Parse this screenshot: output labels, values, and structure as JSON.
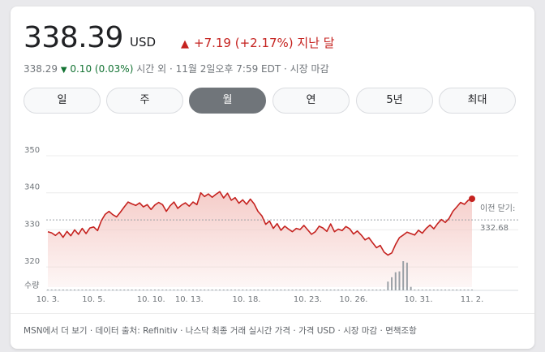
{
  "quote": {
    "price": "338.39",
    "currency": "USD",
    "change_arrow": "▲",
    "change_text": "+7.19 (+2.17%) 지난 달",
    "after_hours_price": "338.29",
    "after_hours_arrow": "▼",
    "after_hours_change": "0.10 (0.03%)",
    "after_hours_label": "시간 외 · 11월 2일오후 7:59 EDT · 시장 마감"
  },
  "tabs": [
    {
      "label": "일",
      "active": false
    },
    {
      "label": "주",
      "active": false
    },
    {
      "label": "월",
      "active": true
    },
    {
      "label": "연",
      "active": false
    },
    {
      "label": "5년",
      "active": false
    },
    {
      "label": "최대",
      "active": false
    }
  ],
  "colors": {
    "line": "#c5221f",
    "fill": "#f4c7c3",
    "volume": "#9aa0a6",
    "grid": "#ececec",
    "accent_up": "#c5221f",
    "accent_down": "#137333"
  },
  "chart_data": {
    "type": "line",
    "ylim": [
      315,
      350
    ],
    "y_ticks": [
      "350",
      "340",
      "330",
      "320"
    ],
    "x_tick_labels": [
      "10. 3.",
      "10. 5.",
      "10. 10.",
      "10. 13.",
      "10. 18.",
      "10. 23.",
      "10. 26.",
      "10. 31.",
      "11. 2."
    ],
    "previous_close_label": "이전 닫기:",
    "previous_close_value": "332.68",
    "previous_close": 332.68,
    "volume_label": "수량",
    "series": [
      {
        "values": [
          329.5,
          329.2,
          328.5,
          329.4,
          328.0,
          329.6,
          328.4,
          330.0,
          328.8,
          330.4,
          329.0,
          330.5,
          330.8,
          329.8,
          332.5,
          334.2,
          335.0,
          334.1,
          333.5,
          334.8,
          336.2,
          337.5,
          337.0,
          336.6,
          337.3,
          336.2,
          336.8,
          335.5,
          336.7,
          337.4,
          336.8,
          335.0,
          336.5,
          337.5,
          335.8,
          336.7,
          337.3,
          336.4,
          337.5,
          336.8,
          340.0,
          339.0,
          339.7,
          338.8,
          339.6,
          340.3,
          338.6,
          339.9,
          338.0,
          338.7,
          337.2,
          338.1,
          336.9,
          338.3,
          337.0,
          335.0,
          333.8,
          331.5,
          332.4,
          330.4,
          331.7,
          329.9,
          331.0,
          330.2,
          329.5,
          330.4,
          330.1,
          331.2,
          330.0,
          328.8,
          329.5,
          331.0,
          330.5,
          329.6,
          331.6,
          329.5,
          330.2,
          329.8,
          330.9,
          330.3,
          328.9,
          329.7,
          328.6,
          327.3,
          327.9,
          326.5,
          325.2,
          325.8,
          324.0,
          323.2,
          323.8,
          326.1,
          327.9,
          328.6,
          329.4,
          329.0,
          328.6,
          329.9,
          329.1,
          330.4,
          331.3,
          330.3,
          331.7,
          332.8,
          332.0,
          333.1,
          335.0,
          336.2,
          337.4,
          336.9,
          338.0,
          338.39
        ]
      }
    ],
    "volume": [
      0,
      0,
      0,
      0,
      0,
      0,
      0,
      0,
      0,
      0,
      0,
      0,
      0,
      0,
      0,
      0,
      0,
      0,
      0,
      0,
      0,
      0,
      0,
      0,
      0,
      0,
      0,
      0,
      0,
      0,
      0,
      0,
      0,
      0,
      0,
      0,
      0,
      0,
      0,
      0,
      0,
      0,
      0,
      0,
      0,
      0,
      0,
      0,
      0,
      0,
      0,
      0,
      0,
      0,
      0,
      0,
      0,
      0,
      0,
      0,
      0,
      0,
      0,
      0,
      0,
      0,
      0,
      0,
      0,
      0,
      0,
      0,
      0,
      0,
      0,
      0,
      0,
      0,
      0,
      0,
      0,
      0,
      0,
      0,
      0,
      0,
      0,
      0,
      0,
      0.3,
      0.45,
      0.62,
      0.65,
      1.0,
      0.95,
      0.12,
      0,
      0,
      0,
      0,
      0,
      0,
      0,
      0,
      0,
      0,
      0,
      0,
      0,
      0,
      0,
      0
    ]
  },
  "footer": {
    "text": "MSN에서 더 보기 · 데이터 출처: Refinitiv · 나스닥 최종 거래 실시간 가격 · 가격 USD · 시장 마감 · 면책조항"
  }
}
